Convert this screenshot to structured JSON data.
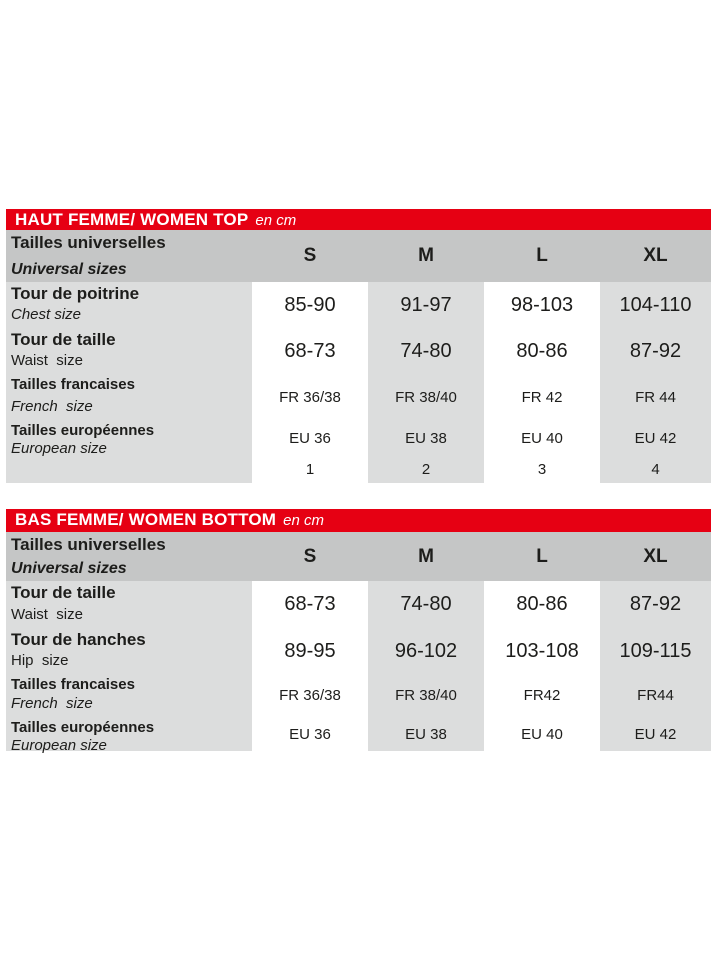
{
  "colors": {
    "brand_red": "#e60013",
    "header_row_gray": "#c5c6c6",
    "cell_gray": "#dcdddd",
    "text": "#1d1d1b"
  },
  "tables": [
    {
      "title": "HAUT FEMME/ WOMEN TOP",
      "unit": "en cm",
      "header": {
        "fr": "Tailles universelles",
        "en": "Universal sizes",
        "sizes": [
          "S",
          "M",
          "L",
          "XL"
        ]
      },
      "rows": [
        {
          "fr": "Tour de poitrine",
          "en": "Chest size",
          "values": [
            "85-90",
            "91-97",
            "98-103",
            "104-110"
          ]
        },
        {
          "fr": "Tour de taille",
          "en": "Waist  size",
          "values": [
            "68-73",
            "74-80",
            "80-86",
            "87-92"
          ]
        },
        {
          "fr": "Tailles francaises",
          "en": "French  size",
          "values": [
            "FR 36/38",
            "FR 38/40",
            "FR 42",
            "FR 44"
          ]
        },
        {
          "fr": "Tailles européennes",
          "en": "European size",
          "values": [
            "EU 36",
            "EU 38",
            "EU 40",
            "EU 42"
          ]
        },
        {
          "fr": "",
          "en": "",
          "values": [
            "1",
            "2",
            "3",
            "4"
          ]
        }
      ]
    },
    {
      "title": "BAS FEMME/ WOMEN BOTTOM",
      "unit": "en cm",
      "header": {
        "fr": "Tailles universelles",
        "en": "Universal sizes",
        "sizes": [
          "S",
          "M",
          "L",
          "XL"
        ]
      },
      "rows": [
        {
          "fr": "Tour de taille",
          "en": "Waist  size",
          "values": [
            "68-73",
            "74-80",
            "80-86",
            "87-92"
          ]
        },
        {
          "fr": "Tour de hanches",
          "en": "Hip  size",
          "values": [
            "89-95",
            "96-102",
            "103-108",
            "109-115"
          ]
        },
        {
          "fr": "Tailles francaises",
          "en": "French  size",
          "values": [
            "FR 36/38",
            "FR 38/40",
            "FR42",
            "FR44"
          ]
        },
        {
          "fr": "Tailles européennes",
          "en": "European size",
          "values": [
            "EU 36",
            "EU 38",
            "EU 40",
            "EU 42"
          ]
        }
      ]
    }
  ]
}
